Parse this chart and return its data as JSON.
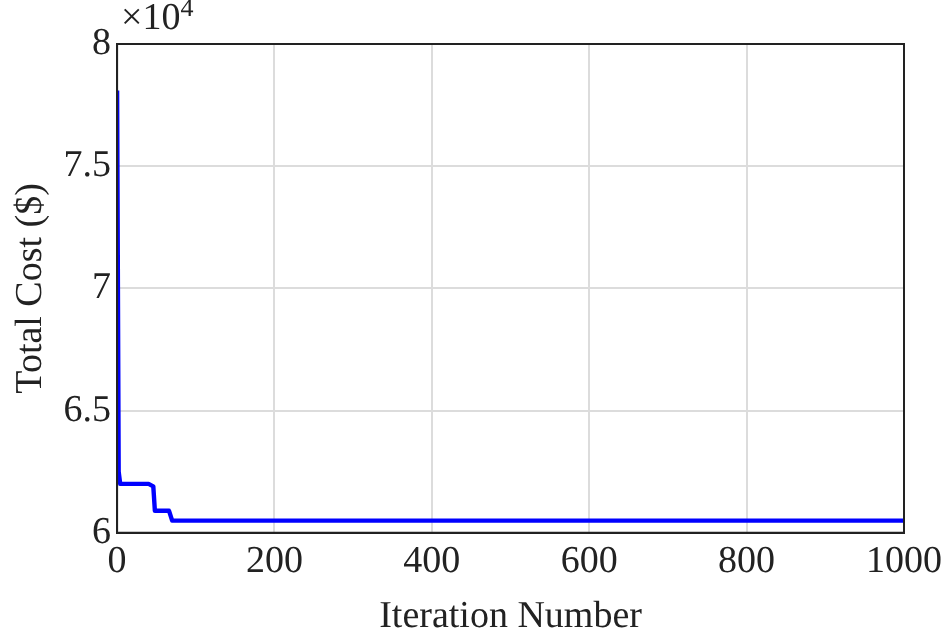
{
  "chart_data": {
    "type": "line",
    "xlabel": "Iteration Number",
    "ylabel": "Total Cost ($)",
    "annotations": [
      "×10$^{4}$"
    ],
    "series": [
      {
        "color": "#0000ff",
        "x": [
          0,
          1,
          2,
          4,
          40,
          46,
          48,
          66,
          70,
          1000
        ],
        "values": [
          7.81,
          7.81,
          6.25,
          6.2,
          6.2,
          6.19,
          6.09,
          6.09,
          6.05,
          6.05
        ]
      }
    ],
    "xlim": [
      0,
      1000
    ],
    "xticks": [
      0,
      200,
      400,
      600,
      800,
      1000
    ],
    "ylim": [
      6,
      8
    ],
    "yticks": [
      6,
      6.5,
      7,
      7.5,
      8
    ],
    "grid": true,
    "legend": false,
    "marker": "none",
    "line_style": "solid"
  }
}
